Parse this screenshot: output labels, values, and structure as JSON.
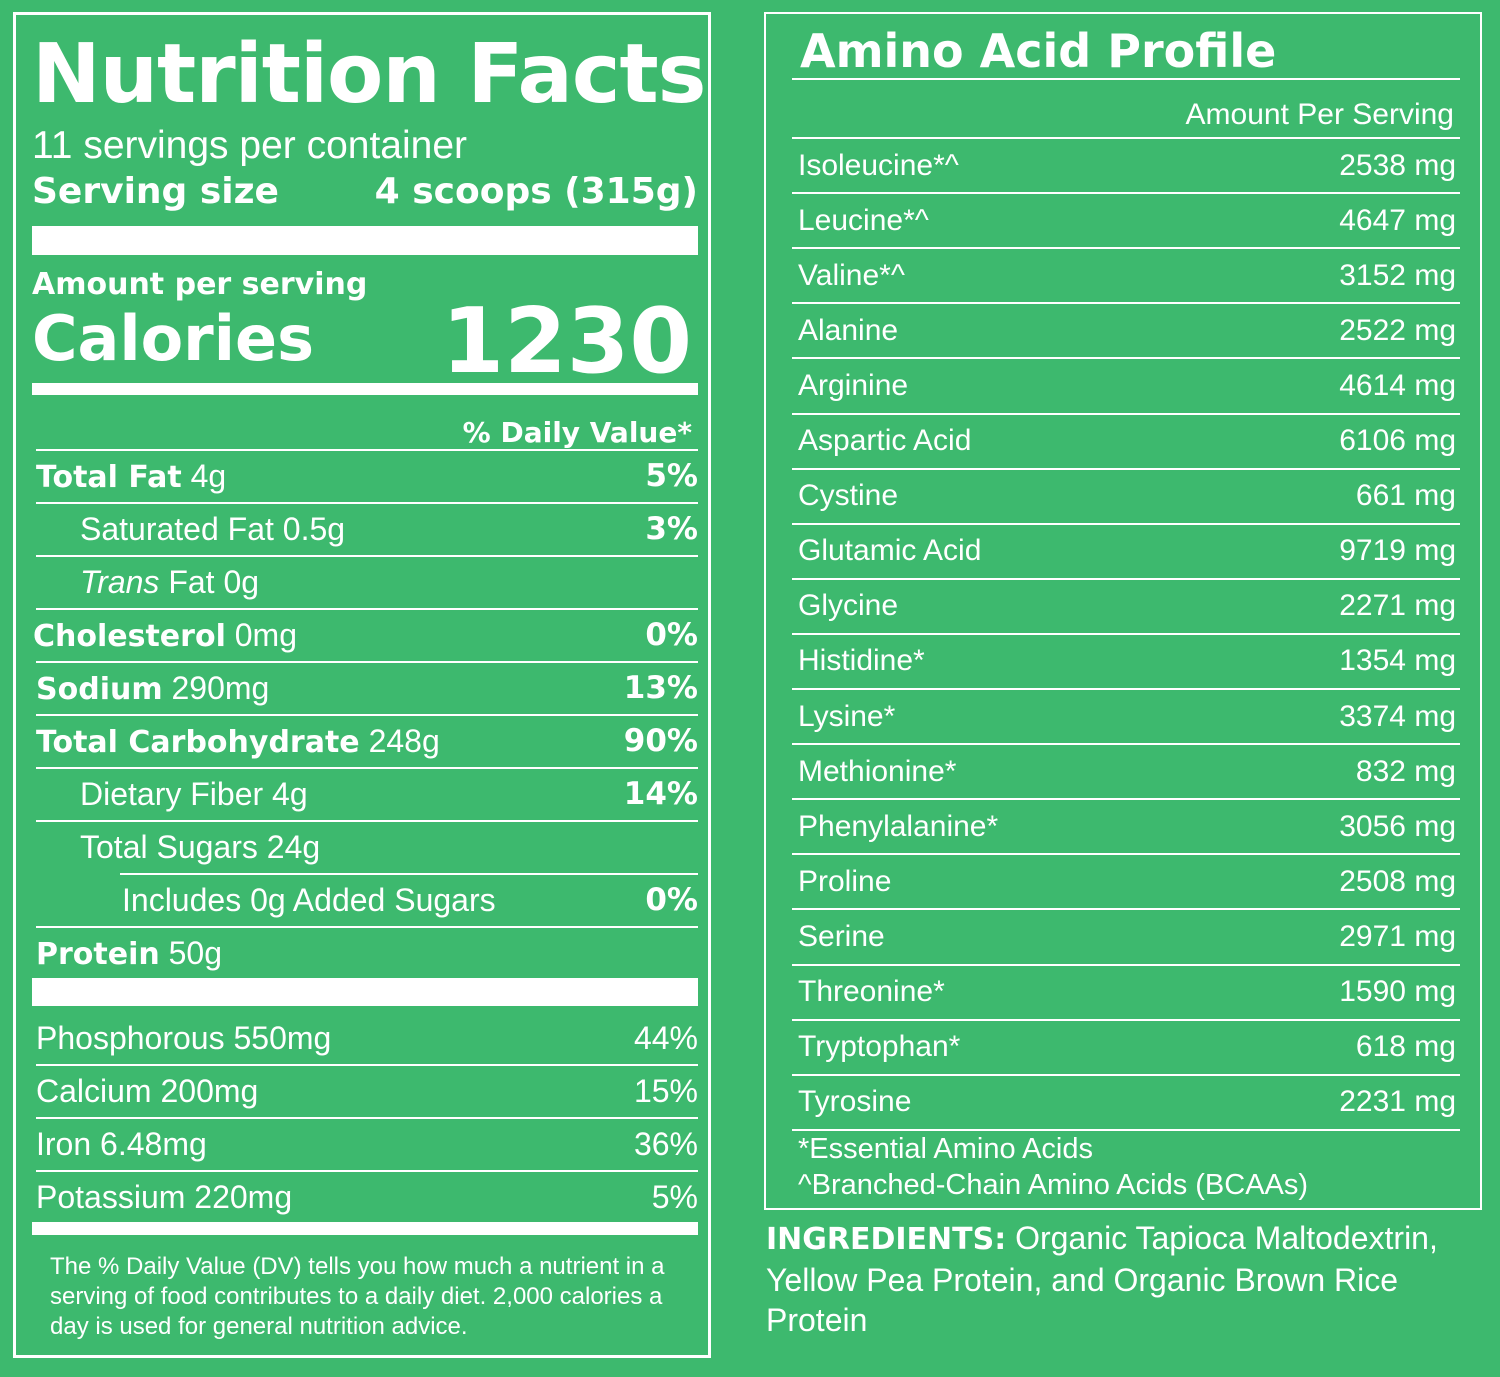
{
  "nutrition": {
    "title": "Nutrition Facts",
    "servings_per_container": "11 servings per container",
    "serving_size_label": "Serving size",
    "serving_size_value": "4 scoops (315g)",
    "amount_per_serving": "Amount per serving",
    "calories_label": "Calories",
    "calories_value": "1230",
    "daily_value_header": "% Daily Value*",
    "rows": [
      {
        "name": "Total Fat",
        "amount": "4g",
        "dv": "5%"
      },
      {
        "name": "Saturated Fat",
        "amount": "0.5g",
        "dv": "3%"
      },
      {
        "name": "Trans",
        "amount": "Fat 0g",
        "dv": ""
      },
      {
        "name": "Cholesterol",
        "amount": "0mg",
        "dv": "0%"
      },
      {
        "name": "Sodium",
        "amount": "290mg",
        "dv": "13%"
      },
      {
        "name": "Total Carbohydrate",
        "amount": "248g",
        "dv": "90%"
      },
      {
        "name": "Dietary Fiber",
        "amount": "4g",
        "dv": "14%"
      },
      {
        "name": "Total Sugars",
        "amount": "24g",
        "dv": ""
      },
      {
        "name": "Includes 0g Added Sugars",
        "amount": "",
        "dv": "0%"
      },
      {
        "name": "Protein",
        "amount": "50g",
        "dv": ""
      }
    ],
    "minerals": [
      {
        "name": "Phosphorous",
        "amount": "550mg",
        "dv": "44%"
      },
      {
        "name": "Calcium",
        "amount": "200mg",
        "dv": "15%"
      },
      {
        "name": "Iron",
        "amount": "6.48mg",
        "dv": "36%"
      },
      {
        "name": "Potassium",
        "amount": "220mg",
        "dv": "5%"
      }
    ],
    "footnote": "The % Daily Value (DV) tells you how much a nutrient in a serving of food contributes to a daily diet. 2,000 calories a day is used for general nutrition advice."
  },
  "amino": {
    "title": "Amino Acid Profile",
    "column_header": "Amount Per Serving",
    "rows": [
      {
        "name": "Isoleucine*^",
        "value": "2538 mg"
      },
      {
        "name": "Leucine*^",
        "value": "4647 mg"
      },
      {
        "name": "Valine*^",
        "value": "3152 mg"
      },
      {
        "name": "Alanine",
        "value": "2522 mg"
      },
      {
        "name": "Arginine",
        "value": "4614 mg"
      },
      {
        "name": "Aspartic Acid",
        "value": "6106 mg"
      },
      {
        "name": "Cystine",
        "value": "661 mg"
      },
      {
        "name": "Glutamic Acid",
        "value": "9719 mg"
      },
      {
        "name": "Glycine",
        "value": "2271 mg"
      },
      {
        "name": "Histidine*",
        "value": "1354 mg"
      },
      {
        "name": "Lysine*",
        "value": "3374 mg"
      },
      {
        "name": "Methionine*",
        "value": "832 mg"
      },
      {
        "name": "Phenylalanine*",
        "value": "3056 mg"
      },
      {
        "name": "Proline",
        "value": "2508 mg"
      },
      {
        "name": "Serine",
        "value": "2971 mg"
      },
      {
        "name": "Threonine*",
        "value": "1590 mg"
      },
      {
        "name": "Tryptophan*",
        "value": "618 mg"
      },
      {
        "name": "Tyrosine",
        "value": "2231 mg"
      }
    ],
    "footnote_essential": "*Essential Amino Acids",
    "footnote_bcaa": "^Branched-Chain Amino Acids (BCAAs)"
  },
  "ingredients": {
    "label": "INGREDIENTS:",
    "text": "Organic Tapioca Maltodextrin, Yellow Pea Protein, and Organic Brown Rice Protein"
  },
  "colors": {
    "background": "#3db96e",
    "text": "#ffffff"
  }
}
